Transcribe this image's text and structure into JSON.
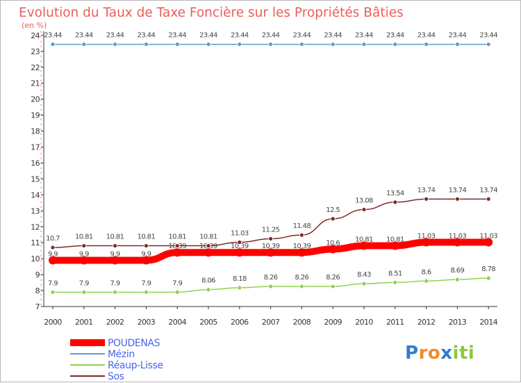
{
  "chart_data": {
    "type": "line",
    "title": "Evolution du Taux de Taxe Foncière sur les Propriétés Bâties",
    "subtitle": "(en %)",
    "xlabel": "",
    "ylabel": "",
    "ylim": [
      7,
      24
    ],
    "yticks": [
      "7",
      "8",
      "9",
      "10",
      "11",
      "12",
      "13",
      "14",
      "15",
      "16",
      "17",
      "18",
      "19",
      "20",
      "21",
      "22",
      "23",
      "24"
    ],
    "x": [
      "2000",
      "2001",
      "2002",
      "2003",
      "2004",
      "2005",
      "2006",
      "2007",
      "2008",
      "2009",
      "2010",
      "2011",
      "2012",
      "2013",
      "2014"
    ],
    "series": [
      {
        "name": "POUDENAS",
        "color": "#ff0000",
        "values": [
          9.9,
          9.9,
          9.9,
          9.9,
          10.39,
          10.39,
          10.39,
          10.39,
          10.39,
          10.6,
          10.81,
          10.81,
          11.03,
          11.03,
          11.03
        ],
        "labels": [
          "9.9",
          "9.9",
          "9.9",
          "9.9",
          "10.39",
          "10.39",
          "10.39",
          "10.39",
          "10.39",
          "10.6",
          "10.81",
          "10.81",
          "11.03",
          "11.03",
          "11.03"
        ]
      },
      {
        "name": "Mézin",
        "color": "#5b9bd5",
        "values": [
          23.44,
          23.44,
          23.44,
          23.44,
          23.44,
          23.44,
          23.44,
          23.44,
          23.44,
          23.44,
          23.44,
          23.44,
          23.44,
          23.44,
          23.44
        ],
        "labels": [
          "23.44",
          "23.44",
          "23.44",
          "23.44",
          "23.44",
          "23.44",
          "23.44",
          "23.44",
          "23.44",
          "23.44",
          "23.44",
          "23.44",
          "23.44",
          "23.44",
          "23.44"
        ]
      },
      {
        "name": "Réaup-Lisse",
        "color": "#8fd14f",
        "values": [
          7.9,
          7.9,
          7.9,
          7.9,
          7.9,
          8.06,
          8.18,
          8.26,
          8.26,
          8.26,
          8.43,
          8.51,
          8.6,
          8.69,
          8.78
        ],
        "labels": [
          "7.9",
          "7.9",
          "7.9",
          "7.9",
          "7.9",
          "8.06",
          "8.18",
          "8.26",
          "8.26",
          "8.26",
          "8.43",
          "8.51",
          "8.6",
          "8.69",
          "8.78"
        ]
      },
      {
        "name": "Sos",
        "color": "#7b2a2a",
        "values": [
          10.7,
          10.81,
          10.81,
          10.81,
          10.81,
          10.81,
          11.03,
          11.25,
          11.48,
          12.5,
          13.08,
          13.54,
          13.74,
          13.74,
          13.74
        ],
        "labels": [
          "10.7",
          "10.81",
          "10.81",
          "10.81",
          "10.81",
          "10.81",
          "11.03",
          "11.25",
          "11.48",
          "12.5",
          "13.08",
          "13.54",
          "13.74",
          "13.74",
          "13.74"
        ]
      }
    ],
    "legend": "bottom-left"
  },
  "logo": {
    "letters": [
      "P",
      "r",
      "o",
      "x",
      "i",
      "t",
      "i"
    ],
    "colors": [
      "#2e7dd1",
      "#f28c28",
      "#f28c28",
      "#2e7dd1",
      "#8dc63f",
      "#8dc63f",
      "#8dc63f"
    ]
  }
}
